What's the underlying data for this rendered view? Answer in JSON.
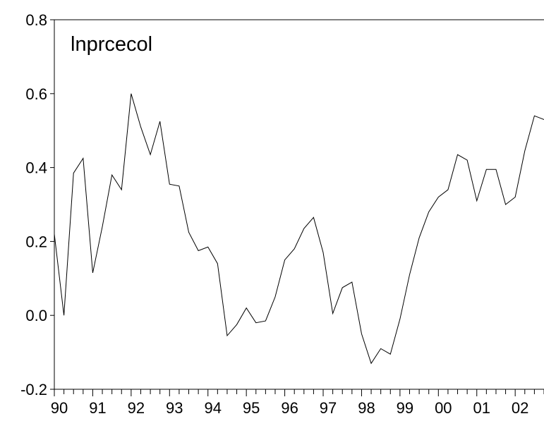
{
  "chart_data": {
    "type": "line",
    "title": "lnprcecol",
    "categories": [
      "90",
      null,
      null,
      null,
      "91",
      null,
      null,
      null,
      "92",
      null,
      null,
      null,
      "93",
      null,
      null,
      null,
      "94",
      null,
      null,
      null,
      "95",
      null,
      null,
      null,
      "96",
      null,
      null,
      null,
      "97",
      null,
      null,
      null,
      "98",
      null,
      null,
      null,
      "99",
      null,
      null,
      null,
      "00",
      null,
      null,
      null,
      "01",
      null,
      null,
      null,
      "02",
      null,
      null,
      null
    ],
    "series": [
      {
        "name": "lnprcecol",
        "color": "#000000",
        "values": [
          0.22,
          0.0,
          0.385,
          0.425,
          0.115,
          0.24,
          0.38,
          0.34,
          0.6,
          0.51,
          0.435,
          0.525,
          0.355,
          0.35,
          0.225,
          0.175,
          0.185,
          0.14,
          -0.055,
          -0.025,
          0.02,
          -0.02,
          -0.015,
          0.05,
          0.15,
          0.18,
          0.235,
          0.265,
          0.17,
          0.005,
          0.075,
          0.09,
          -0.05,
          -0.13,
          -0.09,
          -0.105,
          -0.01,
          0.11,
          0.21,
          0.28,
          0.32,
          0.34,
          0.435,
          0.42,
          0.31,
          0.395,
          0.395,
          0.3,
          0.32,
          0.445,
          0.54,
          0.53
        ]
      }
    ],
    "ylim": [
      -0.2,
      0.8
    ],
    "yticks": [
      -0.2,
      {
        "value": 0,
        "label": "0.0"
      },
      0.2,
      0.4,
      0.6,
      0.8
    ],
    "grid": false
  }
}
